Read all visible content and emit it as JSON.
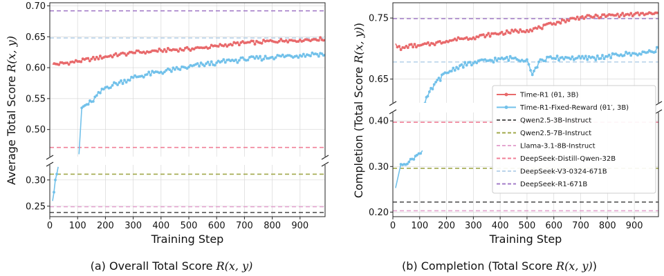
{
  "chart_data": [
    {
      "type": "line",
      "id": "a",
      "caption_prefix": "(a) Overall Total Score ",
      "caption_math": "R(x, y)",
      "xlabel": "Training Step",
      "ylabel_prefix": "Average Total Score ",
      "ylabel_math": "R(x, y)",
      "xlim": [
        0,
        990
      ],
      "xticks": [
        0,
        100,
        200,
        300,
        400,
        500,
        600,
        700,
        800,
        900
      ],
      "xtick_labels": [
        "0",
        "100",
        "200",
        "300",
        "400",
        "500",
        "600",
        "700",
        "800",
        "900"
      ],
      "broken_y": true,
      "upper_ylim": [
        0.455,
        0.705
      ],
      "upper_yticks": [
        0.5,
        0.55,
        0.6,
        0.65,
        0.7
      ],
      "upper_ytick_labels": [
        "0.50",
        "0.55",
        "0.60",
        "0.65",
        "0.70"
      ],
      "lower_ylim": [
        0.23,
        0.33
      ],
      "lower_yticks": [
        0.25,
        0.3
      ],
      "lower_ytick_labels": [
        "0.25",
        "0.30"
      ],
      "grid": true,
      "series": [
        {
          "name": "Time-R1 (θ1, 3B)",
          "style": "line-marker",
          "color": "#e8696b",
          "x": [
            10,
            50,
            100,
            150,
            200,
            250,
            300,
            350,
            400,
            450,
            500,
            550,
            600,
            650,
            700,
            750,
            800,
            850,
            900,
            950,
            990
          ],
          "y": [
            0.605,
            0.607,
            0.61,
            0.614,
            0.618,
            0.621,
            0.624,
            0.626,
            0.628,
            0.629,
            0.63,
            0.632,
            0.635,
            0.638,
            0.64,
            0.641,
            0.643,
            0.644,
            0.645,
            0.646,
            0.646
          ]
        },
        {
          "name": "Time-R1-Fixed-Reward (θ1′, 3B)",
          "style": "line-marker",
          "color": "#72c1ea",
          "x": [
            10,
            20,
            30,
            105,
            115,
            150,
            200,
            250,
            300,
            350,
            400,
            450,
            500,
            550,
            600,
            650,
            700,
            750,
            800,
            850,
            900,
            950,
            990
          ],
          "y": [
            0.26,
            0.3,
            0.325,
            0.46,
            0.535,
            0.545,
            0.568,
            0.576,
            0.584,
            0.589,
            0.593,
            0.597,
            0.601,
            0.605,
            0.608,
            0.611,
            0.613,
            0.615,
            0.617,
            0.619,
            0.62,
            0.622,
            0.622
          ]
        }
      ],
      "baselines": [
        {
          "name": "Qwen2.5-3B-Instruct",
          "value": 0.238,
          "color": "#555555"
        },
        {
          "name": "Qwen2.5-7B-Instruct",
          "value": 0.311,
          "color": "#a0a84a"
        },
        {
          "name": "Llama-3.1-8B-Instruct",
          "value": 0.249,
          "color": "#e4a5cf"
        },
        {
          "name": "DeepSeek-Distill-Qwen-32B",
          "value": 0.471,
          "color": "#f07f97"
        },
        {
          "name": "DeepSeek-V3-0324-671B",
          "value": 0.648,
          "color": "#b9d3ea"
        },
        {
          "name": "DeepSeek-R1-671B",
          "value": 0.692,
          "color": "#a37dc8"
        }
      ]
    },
    {
      "type": "line",
      "id": "b",
      "caption_prefix": "(b) Completion (Total Score ",
      "caption_math": "R(x, y)",
      "caption_suffix": ")",
      "xlabel": "Training Step",
      "ylabel_prefix": "Completion (Total Score ",
      "ylabel_math": "R(x, y)",
      "ylabel_suffix": ")",
      "xlim": [
        0,
        990
      ],
      "xticks": [
        0,
        100,
        200,
        300,
        400,
        500,
        600,
        700,
        800,
        900
      ],
      "xtick_labels": [
        "0",
        "100",
        "200",
        "300",
        "400",
        "500",
        "600",
        "700",
        "800",
        "900"
      ],
      "broken_y": true,
      "upper_ylim": [
        0.61,
        0.775
      ],
      "upper_yticks": [
        0.65,
        0.75
      ],
      "upper_ytick_labels": [
        "0.65",
        "0.75"
      ],
      "lower_ylim": [
        0.19,
        0.42
      ],
      "lower_yticks": [
        0.2,
        0.3,
        0.4
      ],
      "lower_ytick_labels": [
        "0.20",
        "0.30",
        "0.40"
      ],
      "grid": true,
      "legend": "right-center",
      "series": [
        {
          "name": "Time-R1 (θ1, 3B)",
          "style": "line-marker",
          "color": "#e8696b",
          "x": [
            10,
            30,
            50,
            100,
            150,
            200,
            250,
            300,
            350,
            400,
            450,
            500,
            550,
            600,
            650,
            700,
            750,
            800,
            850,
            900,
            950,
            990
          ],
          "y": [
            0.708,
            0.698,
            0.704,
            0.705,
            0.708,
            0.712,
            0.716,
            0.718,
            0.722,
            0.725,
            0.728,
            0.73,
            0.734,
            0.741,
            0.747,
            0.751,
            0.752,
            0.754,
            0.755,
            0.756,
            0.757,
            0.757
          ]
        },
        {
          "name": "Time-R1-Fixed-Reward (θ1′, 3B)",
          "style": "line-marker",
          "color": "#72c1ea",
          "x": [
            10,
            30,
            60,
            90,
            110,
            115,
            130,
            160,
            200,
            250,
            300,
            350,
            400,
            450,
            500,
            520,
            550,
            600,
            650,
            700,
            750,
            800,
            850,
            900,
            950,
            990
          ],
          "y": [
            0.253,
            0.305,
            0.31,
            0.325,
            0.335,
            0.605,
            0.622,
            0.645,
            0.66,
            0.672,
            0.676,
            0.68,
            0.683,
            0.684,
            0.682,
            0.657,
            0.682,
            0.684,
            0.685,
            0.684,
            0.685,
            0.687,
            0.69,
            0.692,
            0.694,
            0.7
          ]
        }
      ],
      "baselines": [
        {
          "name": "Qwen2.5-3B-Instruct",
          "value": 0.222,
          "color": "#555555"
        },
        {
          "name": "Qwen2.5-7B-Instruct",
          "value": 0.296,
          "color": "#a0a84a"
        },
        {
          "name": "Llama-3.1-8B-Instruct",
          "value": 0.203,
          "color": "#e4a5cf"
        },
        {
          "name": "DeepSeek-Distill-Qwen-32B",
          "value": 0.397,
          "color": "#f07f97"
        },
        {
          "name": "DeepSeek-V3-0324-671B",
          "value": 0.678,
          "color": "#b9d3ea"
        },
        {
          "name": "DeepSeek-R1-671B",
          "value": 0.749,
          "color": "#a37dc8"
        }
      ]
    }
  ]
}
